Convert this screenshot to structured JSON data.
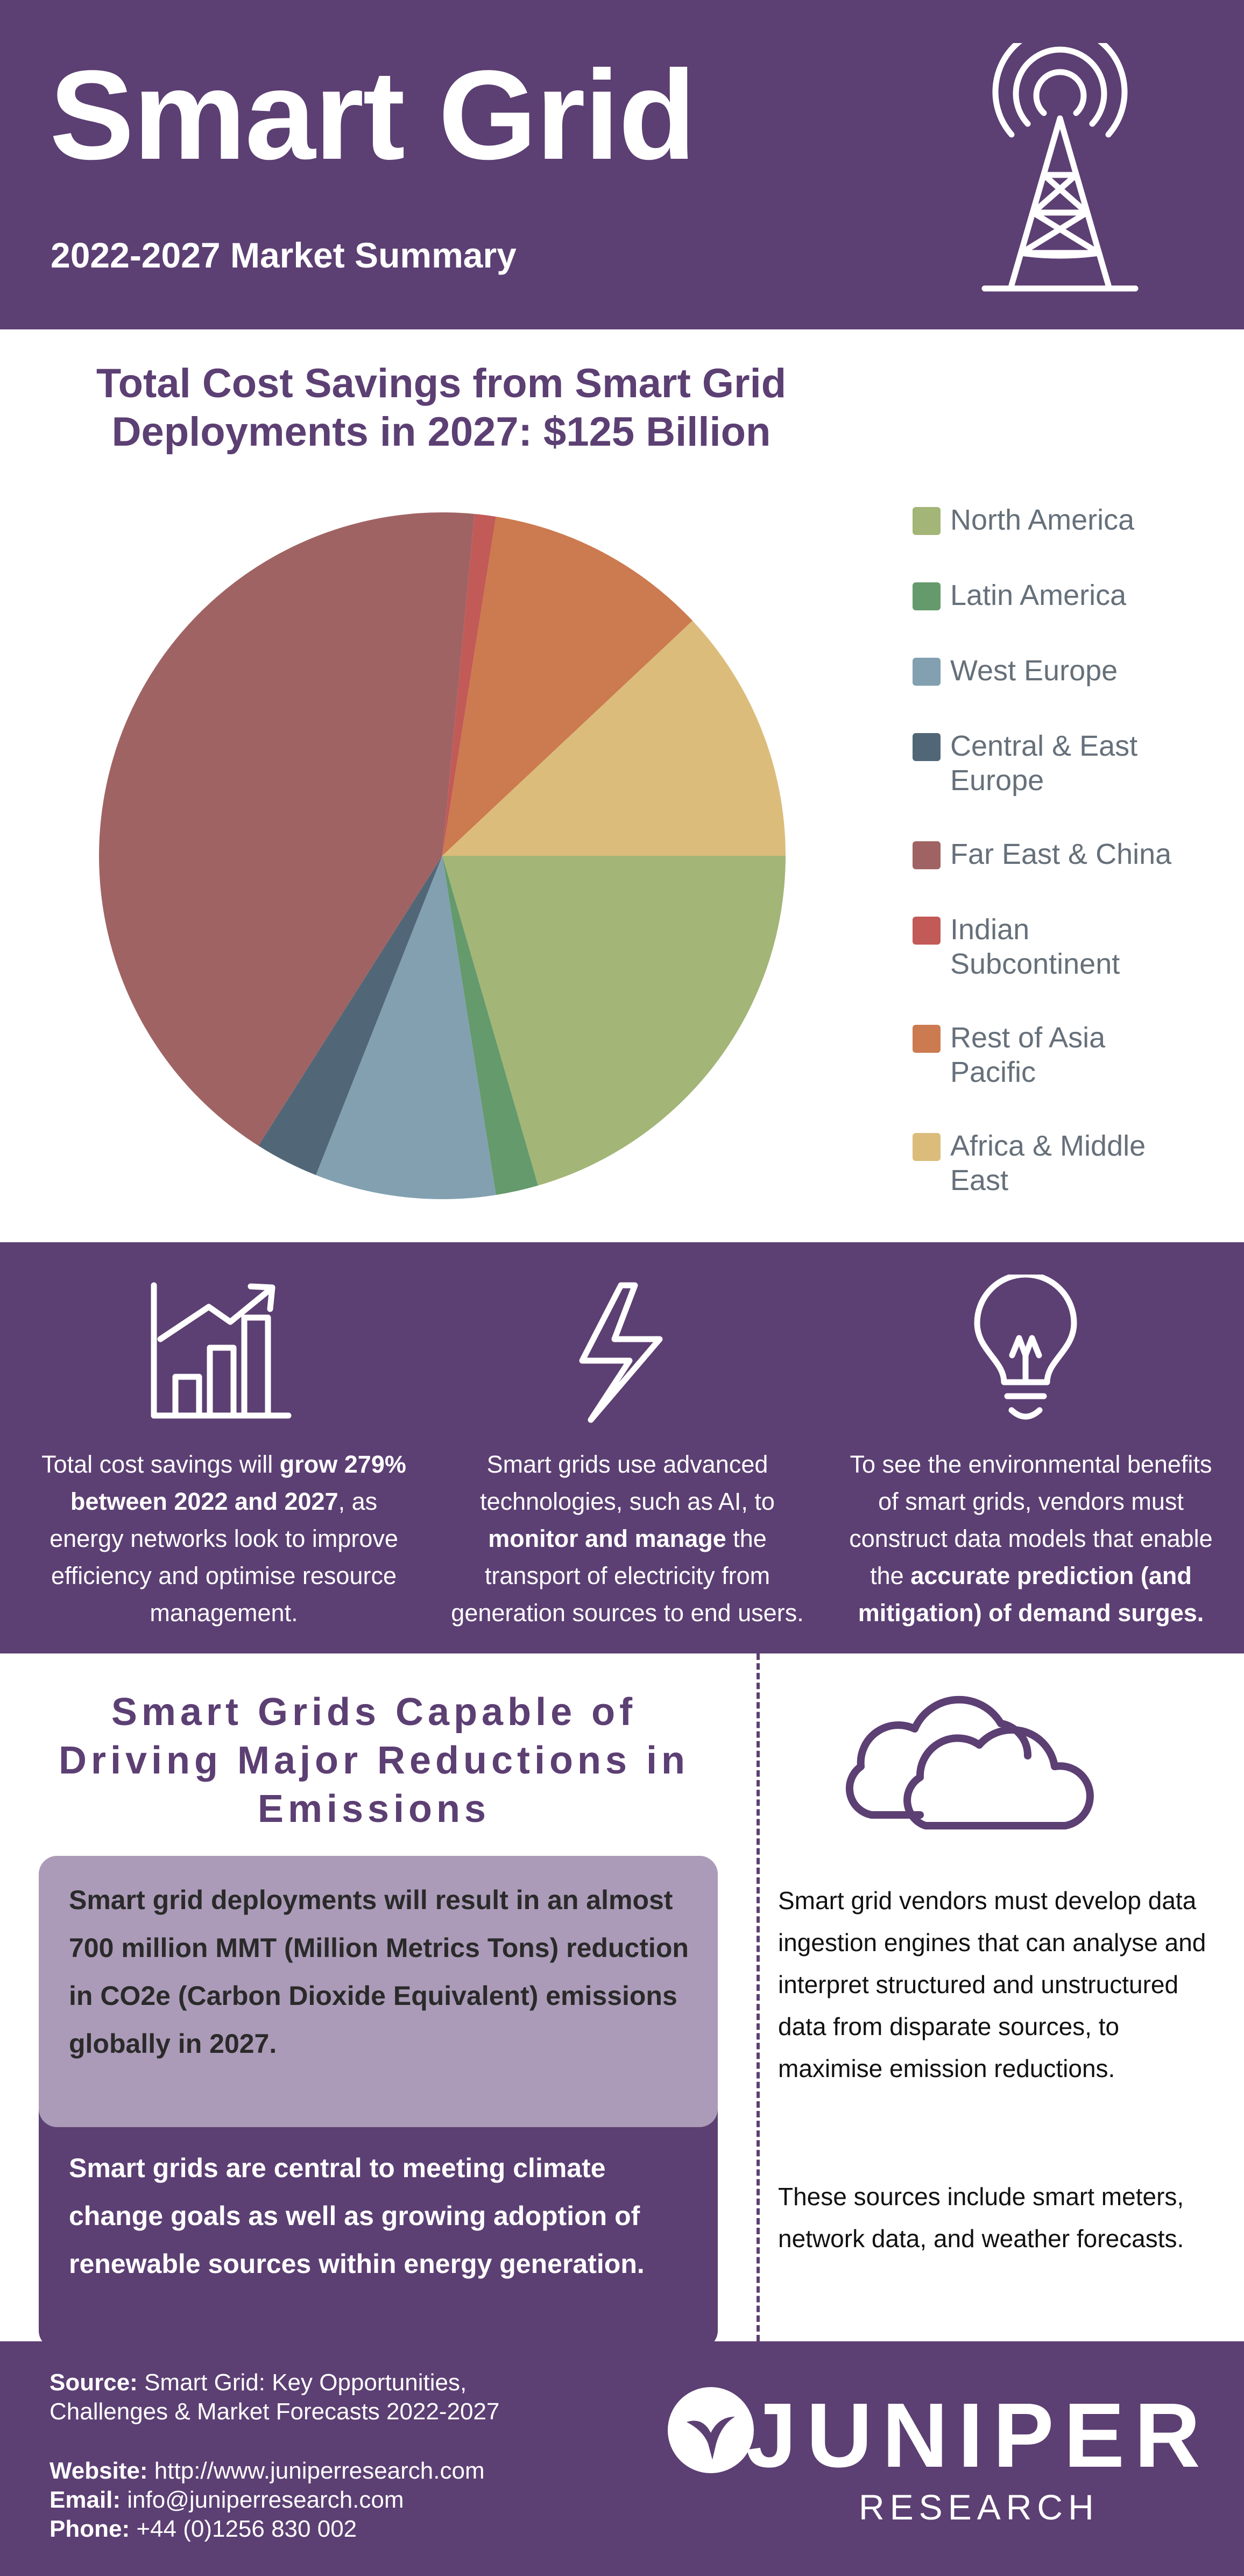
{
  "header": {
    "title": "Smart Grid",
    "subtitle": "2022-2027 Market Summary",
    "icon": "radio-tower-icon"
  },
  "chart_data": {
    "type": "pie",
    "title_line1": "Total Cost Savings from Smart Grid",
    "title_line2": "Deployments in 2027: $125 Billion",
    "legend_position": "right",
    "categories": [
      "North America",
      "Latin America",
      "West Europe",
      "Central & East Europe",
      "Far East & China",
      "Indian Subcontinent",
      "Rest of Asia Pacific",
      "Africa & Middle East"
    ],
    "values": [
      20.5,
      2.0,
      8.5,
      3.0,
      42.5,
      1.0,
      10.5,
      12.0
    ],
    "colors": [
      "#a3b577",
      "#649a6c",
      "#82a0b0",
      "#516777",
      "#a06363",
      "#c25a57",
      "#cc7a4f",
      "#dbbc7b"
    ]
  },
  "stats": [
    {
      "icon": "growth-chart-icon",
      "parts": [
        {
          "text": "Total cost savings will ",
          "bold": false
        },
        {
          "text": "grow 279% between 2022 and 2027",
          "bold": true
        },
        {
          "text": ", as energy networks look to improve efficiency and optimise resource management.",
          "bold": false
        }
      ]
    },
    {
      "icon": "lightning-bolt-icon",
      "parts": [
        {
          "text": "Smart grids use advanced technologies, such as AI, to ",
          "bold": false
        },
        {
          "text": "monitor and manage",
          "bold": true
        },
        {
          "text": " the transport of electricity from generation sources to end users.",
          "bold": false
        }
      ]
    },
    {
      "icon": "lightbulb-icon",
      "parts": [
        {
          "text": "To see the environmental benefits of smart grids, vendors must construct data models that enable the ",
          "bold": false
        },
        {
          "text": "accurate prediction (and mitigation) of demand surges.",
          "bold": true
        }
      ]
    }
  ],
  "emissions": {
    "heading": "Smart Grids Capable of Driving Major Reductions in Emissions",
    "callout_light": "Smart grid deployments will result in an almost 700 million MMT (Million Metrics Tons) reduction in CO2e (Carbon Dioxide Equivalent) emissions globally in 2027.",
    "callout_dark": "Smart grids are central to meeting climate change goals as well as growing adoption of renewable sources within energy generation.",
    "cloud_icon": "cloud-icon",
    "right_para_1": "Smart grid vendors must develop data ingestion engines that can analyse and interpret structured and unstructured data from disparate sources, to maximise emission reductions.",
    "right_para_2": "These sources include smart meters, network data, and weather forecasts."
  },
  "footer": {
    "source_label": "Source:",
    "source_line1": "Smart Grid: Key Opportunities,",
    "source_line2": "Challenges & Market Forecasts 2022-2027",
    "website_label": "Website:",
    "website": "http://www.juniperresearch.com",
    "email_label": "Email:",
    "email": "info@juniperresearch.com",
    "phone_label": "Phone:",
    "phone": "+44 (0)1256 830 002",
    "logo_word": "JUNIPER",
    "logo_sub": "RESEARCH"
  }
}
